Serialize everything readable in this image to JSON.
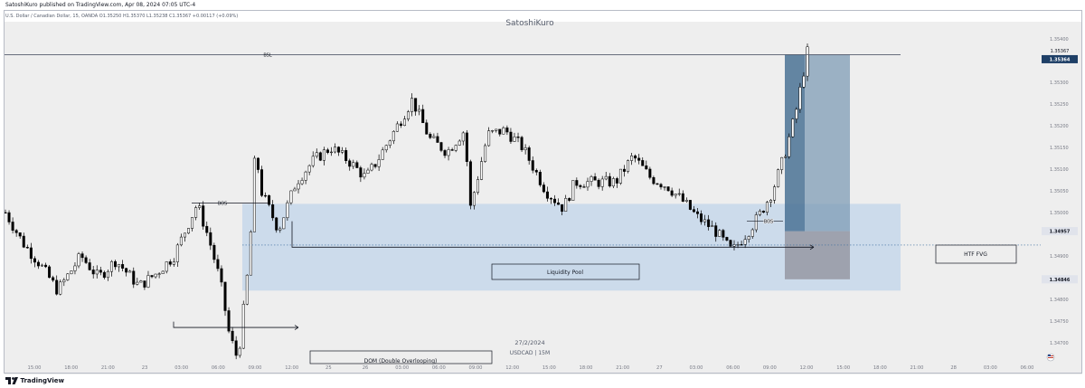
{
  "header": {
    "published": "SatoshiKuro published on TradingView.com, Apr 08, 2024 07:05 UTC-4",
    "symbol_line": "U.S. Dollar / Canadian Dollar, 15, OANDA  O1.35250  H1.35370  L1.35238  C1.35367  +0.00117 (+0.09%)"
  },
  "chart_data": {
    "type": "candlestick",
    "title": "SatoshiKuro",
    "instrument": "USDCAD",
    "timeframe_label": "USDCAD | 15M",
    "date_label": "27/2/2024",
    "ohlc_readout": {
      "open": 1.3525,
      "high": 1.3537,
      "low": 1.35238,
      "close": 1.35367,
      "change": 0.00117,
      "change_pct": "+0.09%"
    },
    "ylim": [
      1.3466,
      1.3544
    ],
    "y_ticks": [
      "1.35400",
      "1.35300",
      "1.35250",
      "1.35200",
      "1.35150",
      "1.35100",
      "1.35050",
      "1.35000",
      "1.34900",
      "1.34800",
      "1.34750",
      "1.34700"
    ],
    "x_ticks": [
      "15:00",
      "18:00",
      "21:00",
      "23",
      "03:00",
      "06:00",
      "09:00",
      "12:00",
      "25",
      "26",
      "03:00",
      "06:00",
      "09:00",
      "12:00",
      "15:00",
      "18:00",
      "21:00",
      "27",
      "03:00",
      "06:00",
      "09:00",
      "12:00",
      "15:00",
      "18:00",
      "21:00",
      "28",
      "03:00",
      "06:00"
    ],
    "price_badges": [
      {
        "text": "1.35367",
        "value": 1.35367,
        "style": "plain"
      },
      {
        "text": "1.35364",
        "value": 1.35364,
        "style": "dark"
      },
      {
        "text": "1.34957",
        "value": 1.34957,
        "style": "grey"
      },
      {
        "text": "1.34846",
        "value": 1.34846,
        "style": "grey"
      }
    ],
    "series": [
      {
        "candles_count": 220,
        "path": [
          [
            0,
            1.35
          ],
          [
            6,
            1.3493
          ],
          [
            12,
            1.3488
          ],
          [
            18,
            1.3482
          ],
          [
            26,
            1.349
          ],
          [
            32,
            1.3485
          ],
          [
            38,
            1.3489
          ],
          [
            46,
            1.3483
          ],
          [
            52,
            1.3486
          ],
          [
            58,
            1.349
          ],
          [
            66,
            1.3502
          ],
          [
            70,
            1.3494
          ],
          [
            74,
            1.3484
          ],
          [
            77,
            1.3472
          ],
          [
            80,
            1.3466
          ],
          [
            84,
            1.349
          ],
          [
            86,
            1.3515
          ],
          [
            88,
            1.3505
          ],
          [
            94,
            1.3496
          ],
          [
            100,
            1.3507
          ],
          [
            106,
            1.3512
          ],
          [
            112,
            1.3515
          ],
          [
            118,
            1.3512
          ],
          [
            124,
            1.3508
          ],
          [
            128,
            1.3512
          ],
          [
            134,
            1.3519
          ],
          [
            140,
            1.3526
          ],
          [
            146,
            1.3517
          ],
          [
            152,
            1.3514
          ],
          [
            158,
            1.3519
          ],
          [
            160,
            1.3501
          ],
          [
            166,
            1.3518
          ],
          [
            172,
            1.3519
          ],
          [
            178,
            1.3515
          ],
          [
            186,
            1.3505
          ],
          [
            192,
            1.3501
          ],
          [
            196,
            1.3507
          ],
          [
            202,
            1.3507
          ],
          [
            210,
            1.3507
          ],
          [
            216,
            1.3513
          ],
          [
            222,
            1.3508
          ],
          [
            228,
            1.3506
          ],
          [
            234,
            1.3502
          ],
          [
            238,
            1.3499
          ],
          [
            244,
            1.3496
          ],
          [
            250,
            1.3491
          ],
          [
            256,
            1.3496
          ],
          [
            260,
            1.35
          ],
          [
            264,
            1.3505
          ],
          [
            268,
            1.3513
          ],
          [
            272,
            1.3523
          ],
          [
            276,
            1.3537
          ]
        ]
      }
    ],
    "levels": [
      {
        "label": "BSL",
        "value": 1.35364
      },
      {
        "label": "BOS",
        "value": 1.3502
      },
      {
        "label": "BOS",
        "value": 1.3498
      }
    ],
    "annotations": {
      "liquidity_pool": "Liquidity Pool",
      "htf_fvg": "HTF FVG",
      "dom": "DOM (Double Overlooping)"
    },
    "zones": [
      {
        "name": "liquidity-zone",
        "top": 1.3502,
        "bottom": 1.3482,
        "color": "#c5d7ea"
      },
      {
        "name": "profit-zone",
        "top": 1.35364,
        "bottom": 1.34957,
        "color": "#7f9cb6"
      },
      {
        "name": "loss-zone",
        "top": 1.34957,
        "bottom": 1.34846,
        "color": "#8f8f99"
      }
    ],
    "colors": {
      "candle_up": "#ffffff",
      "candle_down": "#000000",
      "background": "#eeeeee",
      "accent": "#1e4f7a"
    },
    "grid": false
  },
  "footer": {
    "brand": "TradingView"
  }
}
